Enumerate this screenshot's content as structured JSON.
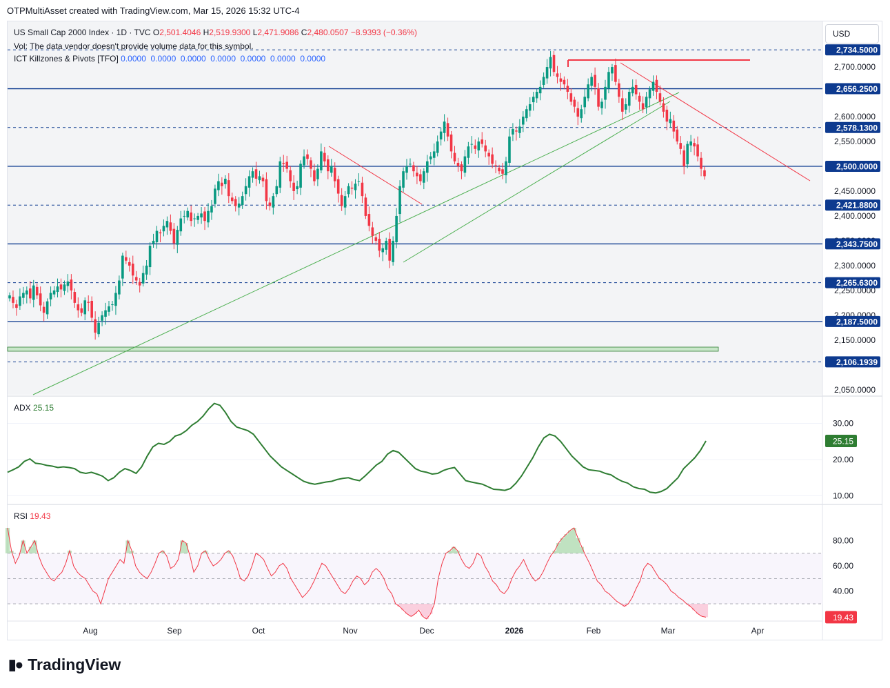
{
  "header": {
    "creator": "OTPMultiAsset created with TradingView.com, Mar 15, 2026 15:32 UTC-4"
  },
  "legend": {
    "symbol": "US Small Cap 2000 Index · 1D · TVC",
    "o_label": "O",
    "o_val": "2,501.4046",
    "h_label": "H",
    "h_val": "2,519.9300",
    "l_label": "L",
    "l_val": "2,471.9086",
    "c_label": "C",
    "c_val": "2,480.0507",
    "chg": "−8.9393 (−0.36%)",
    "vol": "Vol: The data vendor doesn't provide volume data for this symbol.",
    "ict_name": "ICT Killzones & Pivots [TFO]",
    "ict_values": "0.0000  0.0000  0.0000  0.0000  0.0000  0.0000  0.0000",
    "adx_name": "ADX",
    "adx_val": "25.15",
    "rsi_name": "RSI",
    "rsi_val": "19.43"
  },
  "currency_button": "USD",
  "brand": {
    "name": "TradingView",
    "logo_icon": "tradingview-logo-icon"
  },
  "colors": {
    "up": "#089981",
    "down": "#f23645",
    "level_line": "#0d3a8f",
    "adx": "#2e7d32",
    "rsi": "#f23645",
    "trend_green": "#4caf50",
    "trend_red": "#f23645"
  },
  "chart_data": [
    {
      "type": "candlestick",
      "title": "US Small Cap 2000 Index · 1D · TVC",
      "ylim": [
        2040,
        2760
      ],
      "x_ticks": [
        "Aug",
        "Sep",
        "Oct",
        "Nov",
        "Dec",
        "2026",
        "Feb",
        "Mar",
        "Apr"
      ],
      "y_ticks": [
        "2,050.0000",
        "2,150.0000",
        "2,200.0000",
        "2,250.0000",
        "2,300.0000",
        "2,350.0000",
        "2,400.0000",
        "2,450.0000",
        "2,550.0000",
        "2,600.0000",
        "2,700.0000"
      ],
      "levels": [
        {
          "value": 2734.5,
          "label": "2,734.5000",
          "style": "dashed"
        },
        {
          "value": 2656.25,
          "label": "2,656.2500",
          "style": "solid"
        },
        {
          "value": 2578.13,
          "label": "2,578.1300",
          "style": "dashed"
        },
        {
          "value": 2500.0,
          "label": "2,500.0000",
          "style": "solid"
        },
        {
          "value": 2421.88,
          "label": "2,421.8800",
          "style": "dashed"
        },
        {
          "value": 2343.75,
          "label": "2,343.7500",
          "style": "solid"
        },
        {
          "value": 2265.63,
          "label": "2,265.6300",
          "style": "dashed"
        },
        {
          "value": 2187.5,
          "label": "2,187.5000",
          "style": "solid"
        },
        {
          "value": 2106.1939,
          "label": "2,106.1939",
          "style": "dashed"
        }
      ],
      "closes": [
        2240,
        2225,
        2215,
        2238,
        2245,
        2250,
        2234,
        2260,
        2240,
        2220,
        2205,
        2228,
        2245,
        2250,
        2258,
        2252,
        2262,
        2268,
        2250,
        2225,
        2210,
        2205,
        2230,
        2225,
        2195,
        2165,
        2185,
        2200,
        2210,
        2218,
        2222,
        2245,
        2270,
        2320,
        2310,
        2300,
        2280,
        2270,
        2260,
        2285,
        2300,
        2340,
        2350,
        2370,
        2365,
        2380,
        2390,
        2370,
        2345,
        2372,
        2395,
        2400,
        2410,
        2390,
        2395,
        2400,
        2405,
        2390,
        2410,
        2420,
        2455,
        2470,
        2460,
        2475,
        2440,
        2430,
        2420,
        2425,
        2440,
        2460,
        2480,
        2490,
        2475,
        2480,
        2470,
        2430,
        2420,
        2440,
        2460,
        2510,
        2505,
        2495,
        2470,
        2450,
        2460,
        2505,
        2520,
        2515,
        2495,
        2470,
        2495,
        2530,
        2510,
        2490,
        2500,
        2470,
        2445,
        2420,
        2440,
        2460,
        2455,
        2465,
        2470,
        2440,
        2400,
        2380,
        2360,
        2350,
        2330,
        2335,
        2350,
        2310,
        2350,
        2400,
        2460,
        2490,
        2500,
        2505,
        2490,
        2480,
        2470,
        2490,
        2510,
        2520,
        2530,
        2550,
        2570,
        2590,
        2560,
        2530,
        2510,
        2500,
        2490,
        2520,
        2540,
        2545,
        2535,
        2550,
        2545,
        2530,
        2520,
        2505,
        2500,
        2490,
        2485,
        2510,
        2560,
        2575,
        2570,
        2580,
        2600,
        2615,
        2625,
        2640,
        2650,
        2660,
        2680,
        2700,
        2720,
        2690,
        2680,
        2670,
        2665,
        2650,
        2630,
        2620,
        2600,
        2615,
        2640,
        2665,
        2680,
        2660,
        2620,
        2630,
        2660,
        2690,
        2700,
        2670,
        2640,
        2610,
        2625,
        2650,
        2660,
        2645,
        2630,
        2615,
        2640,
        2655,
        2670,
        2650,
        2630,
        2610,
        2590,
        2595,
        2570,
        2550,
        2535,
        2500,
        2545,
        2550,
        2540,
        2520,
        2495,
        2480
      ],
      "ohlc_last": {
        "o": 2501.4046,
        "h": 2519.93,
        "l": 2471.9086,
        "c": 2480.0507
      }
    },
    {
      "type": "line",
      "title": "ADX",
      "ylim": [
        9,
        37
      ],
      "y_ticks": [
        "10.00",
        "20.00",
        "30.00"
      ],
      "last_value": 25.15,
      "series": [
        {
          "values": [
            16.5,
            17.2,
            18.0,
            19.5,
            20.2,
            19.0,
            18.8,
            18.4,
            18.2,
            17.8,
            18.0,
            17.8,
            17.5,
            16.5,
            16.2,
            16.5,
            16.0,
            15.4,
            14.2,
            15.0,
            16.5,
            17.5,
            17.0,
            16.2,
            18.0,
            21.0,
            23.5,
            24.5,
            24.2,
            25.0,
            26.5,
            27.0,
            28.0,
            29.5,
            30.5,
            32.0,
            34.0,
            35.5,
            35.0,
            33.0,
            30.5,
            29.0,
            28.5,
            28.0,
            27.0,
            25.0,
            23.0,
            21.0,
            19.5,
            18.0,
            17.0,
            16.0,
            15.0,
            14.0,
            13.5,
            13.2,
            13.5,
            13.8,
            14.0,
            14.5,
            14.8,
            15.0,
            14.5,
            14.2,
            15.5,
            17.0,
            18.5,
            19.5,
            21.5,
            22.5,
            22.0,
            20.5,
            19.0,
            17.5,
            16.8,
            16.5,
            16.0,
            16.2,
            17.0,
            17.5,
            17.8,
            16.0,
            14.2,
            13.8,
            13.5,
            13.2,
            12.5,
            11.8,
            11.7,
            11.5,
            12.0,
            13.5,
            15.5,
            18.0,
            20.5,
            23.5,
            26.0,
            27.0,
            26.5,
            25.0,
            23.0,
            21.0,
            19.5,
            18.0,
            17.2,
            17.0,
            16.8,
            16.2,
            15.8,
            14.8,
            14.0,
            13.5,
            12.5,
            12.0,
            11.8,
            11.0,
            10.8,
            11.2,
            12.0,
            13.5,
            15.0,
            17.5,
            19.0,
            20.5,
            22.5,
            25.15
          ]
        }
      ]
    },
    {
      "type": "line",
      "title": "RSI",
      "ylim": [
        10,
        95
      ],
      "y_ticks": [
        "40.00",
        "60.00",
        "80.00"
      ],
      "bands": [
        70,
        50,
        30
      ],
      "last_value": 19.43,
      "series": [
        {
          "values": [
            90,
            72,
            62,
            68,
            80,
            70,
            75,
            80,
            68,
            60,
            55,
            50,
            48,
            52,
            55,
            62,
            72,
            60,
            55,
            52,
            50,
            45,
            40,
            38,
            30,
            40,
            50,
            55,
            60,
            65,
            62,
            80,
            72,
            60,
            55,
            52,
            50,
            55,
            62,
            70,
            72,
            68,
            58,
            60,
            65,
            80,
            78,
            68,
            55,
            60,
            70,
            72,
            65,
            60,
            62,
            65,
            70,
            72,
            68,
            60,
            50,
            48,
            52,
            60,
            70,
            68,
            65,
            58,
            52,
            55,
            60,
            62,
            58,
            50,
            45,
            40,
            35,
            38,
            42,
            48,
            55,
            62,
            60,
            55,
            50,
            45,
            40,
            38,
            42,
            48,
            52,
            50,
            45,
            48,
            55,
            58,
            55,
            50,
            42,
            38,
            30,
            28,
            25,
            22,
            20,
            22,
            25,
            20,
            18,
            22,
            30,
            50,
            62,
            70,
            72,
            75,
            72,
            65,
            60,
            58,
            62,
            70,
            68,
            60,
            55,
            48,
            45,
            40,
            38,
            42,
            50,
            56,
            60,
            65,
            58,
            52,
            48,
            50,
            55,
            62,
            68,
            72,
            78,
            82,
            85,
            88,
            90,
            82,
            75,
            68,
            62,
            55,
            48,
            45,
            40,
            38,
            35,
            32,
            30,
            28,
            30,
            35,
            42,
            48,
            58,
            62,
            60,
            55,
            50,
            48,
            45,
            40,
            38,
            35,
            33,
            30,
            28,
            25,
            22,
            20,
            19.43
          ]
        }
      ]
    }
  ]
}
